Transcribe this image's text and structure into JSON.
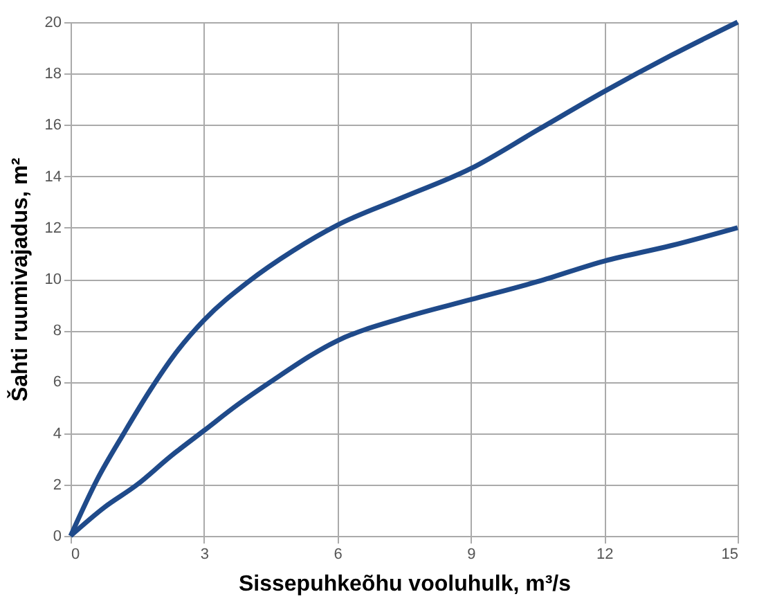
{
  "chart_data": {
    "type": "line",
    "xlabel": "Sissepuhkeõhu vooluhulk, m³/s",
    "ylabel": "Šahti ruumivajadus, m²",
    "xlim": [
      0,
      15
    ],
    "xticks": [
      0,
      3,
      6,
      9,
      12,
      15
    ],
    "ylim": [
      0,
      20
    ],
    "yticks": [
      0,
      2,
      4,
      6,
      8,
      10,
      12,
      14,
      16,
      18,
      20
    ],
    "grid": true,
    "marker": "none",
    "line_style": "solid",
    "series": [
      {
        "color": "#1f4a8a",
        "x": [
          0,
          0.6,
          1.2,
          1.8,
          2.4,
          3,
          4,
          5,
          6,
          7.5,
          9,
          10.5,
          12,
          13.5,
          15
        ],
        "values": [
          0,
          2.2,
          4.0,
          5.7,
          7.2,
          8.4,
          9.9,
          11.1,
          12.1,
          13.2,
          14.3,
          15.8,
          17.3,
          18.7,
          20
        ]
      },
      {
        "color": "#1f4a8a",
        "x": [
          0,
          0.75,
          1.5,
          2.25,
          3,
          3.75,
          4.5,
          6,
          7.5,
          9,
          10.5,
          12,
          13.5,
          15
        ],
        "values": [
          0,
          1.1,
          2.0,
          3.1,
          4.1,
          5.1,
          6.0,
          7.6,
          8.5,
          9.2,
          9.9,
          10.7,
          11.3,
          12
        ]
      }
    ]
  }
}
